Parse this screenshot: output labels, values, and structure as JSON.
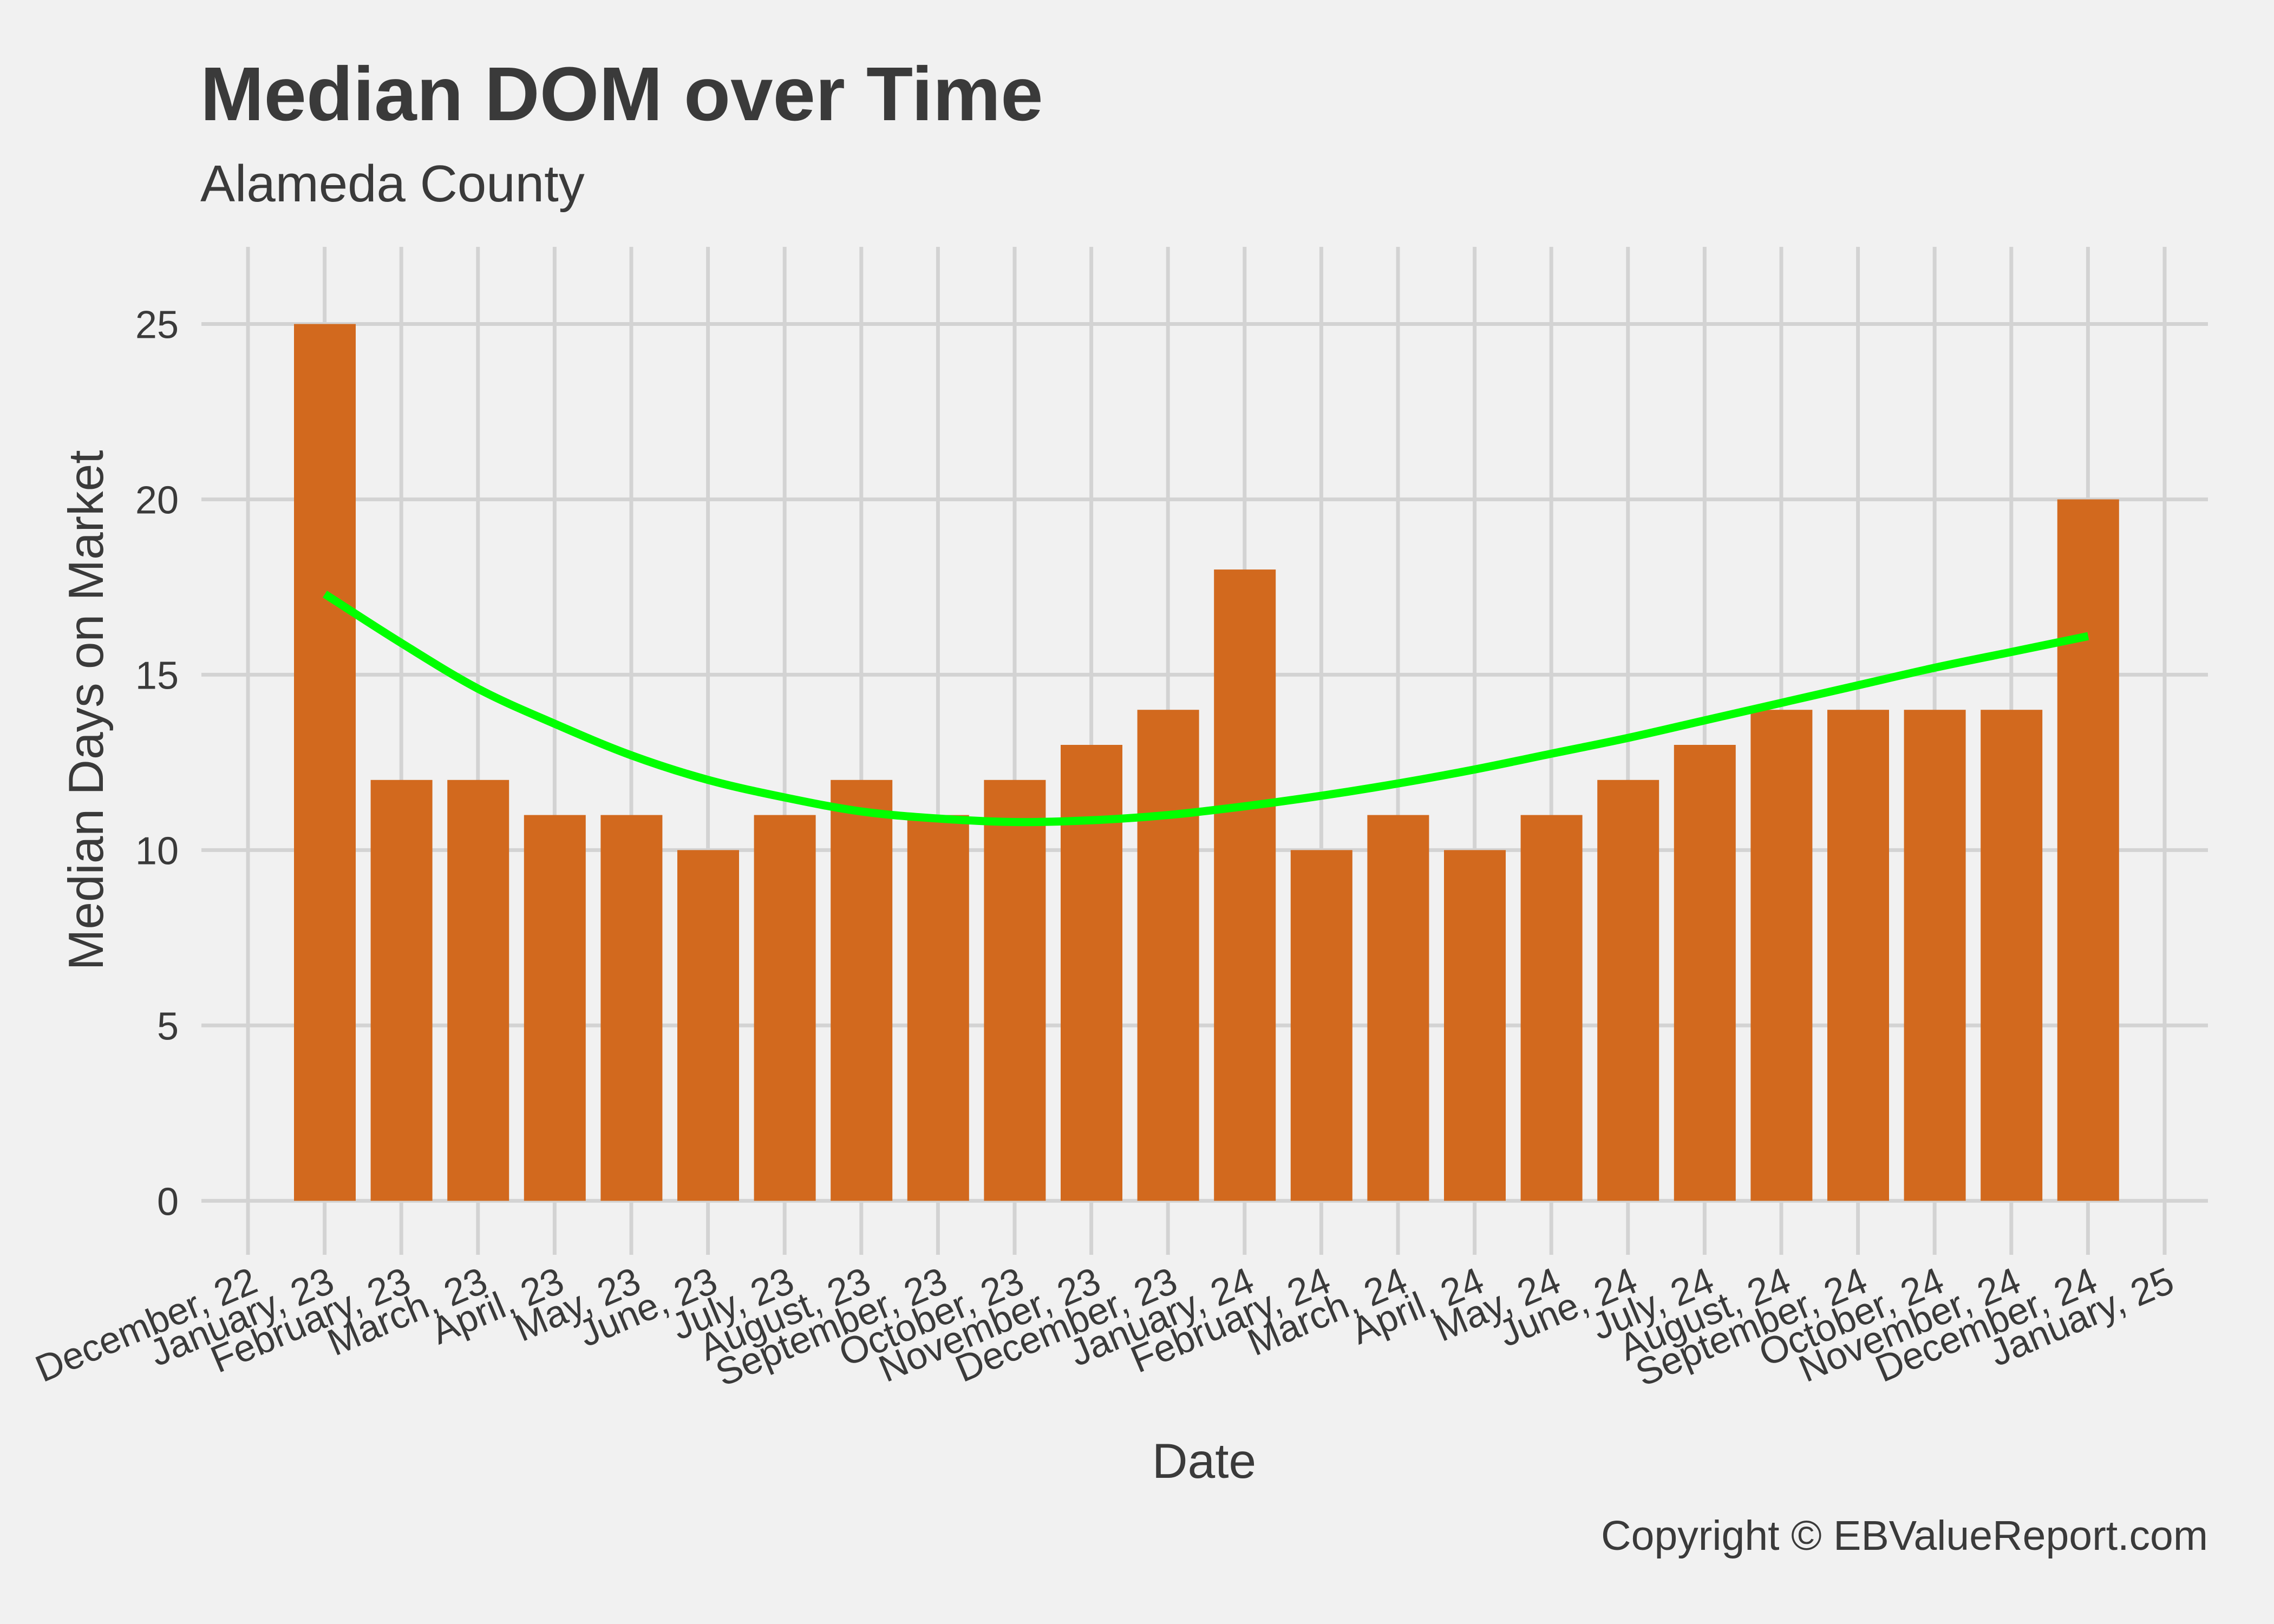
{
  "chart_data": {
    "type": "bar",
    "title": "Median DOM over Time",
    "subtitle": "Alameda County",
    "xlabel": "Date",
    "ylabel": "Median Days on Market",
    "caption": "Copyright  © EBValueReport.com",
    "ylim": [
      -1.2,
      27.2
    ],
    "yticks": [
      0,
      5,
      10,
      15,
      20,
      25
    ],
    "grid": true,
    "bar_color": "#d2691e",
    "trend_color": "#00ff00",
    "tick_labels": [
      "December, 22",
      "January, 23",
      "February, 23",
      "March, 23",
      "April, 23",
      "May, 23",
      "June, 23",
      "July, 23",
      "August, 23",
      "September, 23",
      "October, 23",
      "November, 23",
      "December, 23",
      "January, 24",
      "February, 24",
      "March, 24",
      "April, 24",
      "May, 24",
      "June, 24",
      "July, 24",
      "August, 24",
      "September, 24",
      "October, 24",
      "November, 24",
      "December, 24",
      "January, 25"
    ],
    "bars": [
      {
        "label": "January, 23",
        "value": 25
      },
      {
        "label": "February, 23",
        "value": 12
      },
      {
        "label": "March, 23",
        "value": 12
      },
      {
        "label": "April, 23",
        "value": 11
      },
      {
        "label": "May, 23",
        "value": 11
      },
      {
        "label": "June, 23",
        "value": 10
      },
      {
        "label": "July, 23",
        "value": 11
      },
      {
        "label": "August, 23",
        "value": 12
      },
      {
        "label": "September, 23",
        "value": 11
      },
      {
        "label": "October, 23",
        "value": 12
      },
      {
        "label": "November, 23",
        "value": 13
      },
      {
        "label": "December, 23",
        "value": 14
      },
      {
        "label": "January, 24",
        "value": 18
      },
      {
        "label": "February, 24",
        "value": 10
      },
      {
        "label": "March, 24",
        "value": 11
      },
      {
        "label": "April, 24",
        "value": 10
      },
      {
        "label": "May, 24",
        "value": 11
      },
      {
        "label": "June, 24",
        "value": 12
      },
      {
        "label": "July, 24",
        "value": 13
      },
      {
        "label": "August, 24",
        "value": 14
      },
      {
        "label": "September, 24",
        "value": 14
      },
      {
        "label": "October, 24",
        "value": 14
      },
      {
        "label": "November, 24",
        "value": 14
      },
      {
        "label": "December, 24",
        "value": 20
      }
    ],
    "trend": {
      "x": [
        0,
        1,
        2,
        3,
        4,
        5,
        6,
        7,
        8,
        9,
        10,
        11,
        12,
        13,
        14,
        15,
        16,
        17,
        18,
        19,
        20,
        21,
        22,
        23
      ],
      "y": [
        17.3,
        15.9,
        14.6,
        13.6,
        12.7,
        12.0,
        11.5,
        11.1,
        10.9,
        10.8,
        10.85,
        11.0,
        11.25,
        11.55,
        11.9,
        12.3,
        12.75,
        13.2,
        13.7,
        14.2,
        14.7,
        15.2,
        15.65,
        16.1
      ]
    }
  }
}
